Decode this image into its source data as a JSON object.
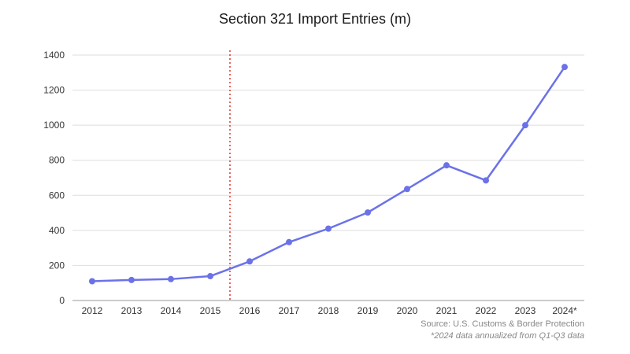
{
  "chart_data": {
    "type": "line",
    "title": "Section 321 Import Entries (m)",
    "categories": [
      "2012",
      "2013",
      "2014",
      "2015",
      "2016",
      "2017",
      "2018",
      "2019",
      "2020",
      "2021",
      "2022",
      "2023",
      "2024*"
    ],
    "series": [
      {
        "values": [
          110,
          117,
          122,
          139,
          223,
          333,
          410,
          502,
          636,
          771,
          685,
          1000,
          1332
        ]
      }
    ],
    "ylim": [
      0,
      1400
    ],
    "yticks": [
      0,
      200,
      400,
      600,
      800,
      1000,
      1200,
      1400
    ],
    "grid": true,
    "line_color": "#6b72e8",
    "reference_line": {
      "between": [
        "2015",
        "2016"
      ],
      "style": "dotted",
      "color": "#e0312b"
    },
    "source": "Source: U.S. Customs & Border Protection",
    "footnote": "*2024 data annualized from Q1-Q3 data"
  }
}
